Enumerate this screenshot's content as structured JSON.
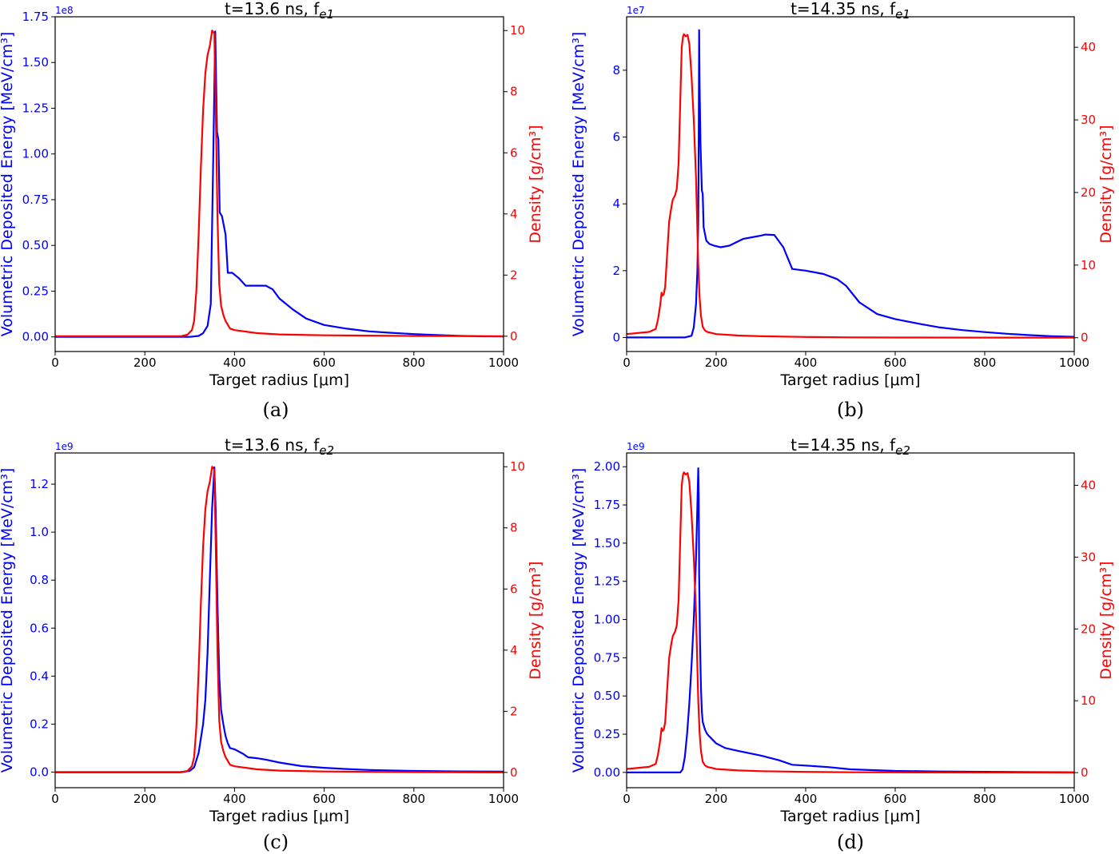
{
  "chart_data": [
    {
      "panel": "(a)",
      "type": "line",
      "title": "t=13.6 ns, f",
      "title_sub": "e1",
      "xlabel": "Target radius [μm]",
      "ylabel_left": "Volumetric Deposited Energy [MeV/cm³]",
      "ylabel_right": "Density [g/cm³]",
      "left_multiplier": "1e8",
      "xlim": [
        0,
        1000
      ],
      "ylim_left": [
        -0.08,
        1.75
      ],
      "ylim_right": [
        -0.5,
        10.45
      ],
      "x_ticks": [
        0,
        200,
        400,
        600,
        800,
        1000
      ],
      "x_tick_labels": [
        "0",
        "200",
        "400",
        "600",
        "800",
        "1000"
      ],
      "left_ticks": [
        0,
        0.25,
        0.5,
        0.75,
        1.0,
        1.25,
        1.5,
        1.75
      ],
      "left_tick_labels": [
        "0.00",
        "0.25",
        "0.50",
        "0.75",
        "1.00",
        "1.25",
        "1.50",
        "1.75"
      ],
      "right_ticks": [
        0,
        2,
        4,
        6,
        8,
        10
      ],
      "right_tick_labels": [
        "0",
        "2",
        "4",
        "6",
        "8",
        "10"
      ],
      "series": [
        {
          "name": "Volumetric Deposited Energy",
          "axis": "left",
          "color": "#0000ff",
          "x": [
            0,
            250,
            300,
            320,
            330,
            340,
            347,
            352,
            357,
            361,
            364,
            367,
            372,
            380,
            385,
            390,
            395,
            400,
            410,
            425,
            440,
            470,
            485,
            500,
            530,
            560,
            600,
            650,
            700,
            750,
            800,
            850,
            900,
            950,
            1000
          ],
          "y": [
            0,
            0,
            0,
            0.005,
            0.02,
            0.06,
            0.18,
            0.9,
            1.67,
            1.12,
            1.08,
            0.68,
            0.66,
            0.56,
            0.35,
            0.35,
            0.35,
            0.34,
            0.32,
            0.28,
            0.28,
            0.28,
            0.26,
            0.21,
            0.15,
            0.1,
            0.065,
            0.045,
            0.03,
            0.022,
            0.015,
            0.01,
            0.006,
            0.003,
            0.002
          ]
        },
        {
          "name": "Density",
          "axis": "right",
          "color": "#ff0000",
          "x": [
            0,
            280,
            295,
            305,
            310,
            315,
            320,
            325,
            330,
            335,
            340,
            345,
            350,
            355,
            358,
            362,
            366,
            370,
            375,
            380,
            390,
            400,
            450,
            500,
            600,
            700,
            800,
            1000
          ],
          "y": [
            0,
            0,
            0.05,
            0.2,
            0.5,
            1.5,
            3.3,
            5.5,
            7.4,
            8.6,
            9.2,
            9.5,
            10.0,
            9.9,
            7.6,
            3.9,
            1.7,
            1.0,
            0.7,
            0.5,
            0.25,
            0.2,
            0.1,
            0.06,
            0.03,
            0.02,
            0.01,
            0
          ]
        }
      ]
    },
    {
      "panel": "(b)",
      "type": "line",
      "title": "t=14.35 ns, f",
      "title_sub": "e1",
      "xlabel": "Target radius [μm]",
      "ylabel_left": "Volumetric Deposited Energy [MeV/cm³]",
      "ylabel_right": "Density [g/cm³]",
      "left_multiplier": "1e7",
      "xlim": [
        0,
        1000
      ],
      "ylim_left": [
        -0.42,
        9.6
      ],
      "ylim_right": [
        -1.9,
        44.2
      ],
      "x_ticks": [
        0,
        200,
        400,
        600,
        800,
        1000
      ],
      "x_tick_labels": [
        "0",
        "200",
        "400",
        "600",
        "800",
        "1000"
      ],
      "left_ticks": [
        0,
        2,
        4,
        6,
        8
      ],
      "left_tick_labels": [
        "0",
        "2",
        "4",
        "6",
        "8"
      ],
      "right_ticks": [
        0,
        10,
        20,
        30,
        40
      ],
      "right_tick_labels": [
        "0",
        "10",
        "20",
        "30",
        "40"
      ],
      "series": [
        {
          "name": "Volumetric Deposited Energy",
          "axis": "left",
          "color": "#0000ff",
          "x": [
            0,
            130,
            145,
            150,
            155,
            158,
            160,
            161,
            162,
            163,
            165,
            168,
            170,
            172,
            175,
            178,
            185,
            195,
            210,
            230,
            260,
            280,
            300,
            310,
            330,
            350,
            370,
            400,
            440,
            470,
            490,
            520,
            560,
            600,
            650,
            700,
            750,
            800,
            850,
            900,
            950,
            1000
          ],
          "y": [
            0,
            0,
            0.05,
            0.3,
            1.0,
            2.0,
            3.5,
            6.0,
            9.2,
            7.5,
            5.8,
            4.4,
            4.3,
            3.3,
            3.1,
            2.9,
            2.8,
            2.75,
            2.7,
            2.75,
            2.95,
            3.0,
            3.05,
            3.08,
            3.07,
            2.7,
            2.05,
            2.0,
            1.9,
            1.75,
            1.55,
            1.05,
            0.7,
            0.55,
            0.42,
            0.3,
            0.22,
            0.16,
            0.11,
            0.07,
            0.04,
            0.02
          ]
        },
        {
          "name": "Density",
          "axis": "right",
          "color": "#ff0000",
          "x": [
            0,
            50,
            65,
            70,
            75,
            78,
            80,
            83,
            86,
            88,
            92,
            95,
            100,
            103,
            108,
            112,
            116,
            120,
            123,
            126,
            128,
            132,
            136,
            140,
            145,
            150,
            155,
            160,
            163,
            166,
            170,
            175,
            180,
            200,
            250,
            300,
            400,
            500,
            600,
            800,
            1000
          ],
          "y": [
            0.5,
            0.8,
            1.2,
            2.5,
            4.5,
            6.2,
            5.8,
            6.0,
            7.0,
            9.0,
            13.0,
            16.0,
            18.0,
            19.0,
            19.6,
            20.5,
            24.0,
            33.0,
            40.0,
            41.5,
            41.8,
            41.5,
            41.7,
            40.5,
            36.0,
            30.0,
            22.0,
            10.0,
            5.5,
            3.0,
            1.5,
            1.0,
            0.8,
            0.5,
            0.3,
            0.2,
            0.1,
            0.05,
            0.03,
            0.01,
            0
          ]
        }
      ]
    },
    {
      "panel": "(c)",
      "type": "line",
      "title": "t=13.6 ns, f",
      "title_sub": "e2",
      "xlabel": "Target radius [μm]",
      "ylabel_left": "Volumetric Deposited Energy [MeV/cm³]",
      "ylabel_right": "Density [g/cm³]",
      "left_multiplier": "1e9",
      "xlim": [
        0,
        1000
      ],
      "ylim_left": [
        -0.065,
        1.33
      ],
      "ylim_right": [
        -0.5,
        10.45
      ],
      "x_ticks": [
        0,
        200,
        400,
        600,
        800,
        1000
      ],
      "x_tick_labels": [
        "0",
        "200",
        "400",
        "600",
        "800",
        "1000"
      ],
      "left_ticks": [
        0,
        0.2,
        0.4,
        0.6,
        0.8,
        1.0,
        1.2
      ],
      "left_tick_labels": [
        "0.0",
        "0.2",
        "0.4",
        "0.6",
        "0.8",
        "1.0",
        "1.2"
      ],
      "right_ticks": [
        0,
        2,
        4,
        6,
        8,
        10
      ],
      "right_tick_labels": [
        "0",
        "2",
        "4",
        "6",
        "8",
        "10"
      ],
      "series": [
        {
          "name": "Volumetric Deposited Energy",
          "axis": "left",
          "color": "#0000ff",
          "x": [
            0,
            280,
            300,
            310,
            320,
            330,
            335,
            340,
            345,
            350,
            355,
            358,
            362,
            366,
            370,
            375,
            380,
            385,
            390,
            400,
            420,
            430,
            450,
            470,
            500,
            550,
            600,
            650,
            700,
            800,
            900,
            1000
          ],
          "y": [
            0,
            0,
            0.005,
            0.02,
            0.08,
            0.2,
            0.3,
            0.5,
            0.8,
            1.1,
            1.27,
            1.1,
            0.7,
            0.4,
            0.26,
            0.2,
            0.15,
            0.12,
            0.1,
            0.095,
            0.075,
            0.062,
            0.058,
            0.052,
            0.04,
            0.025,
            0.018,
            0.013,
            0.009,
            0.005,
            0.003,
            0.002
          ]
        },
        {
          "name": "Density",
          "axis": "right",
          "color": "#ff0000",
          "x": [
            0,
            280,
            295,
            305,
            310,
            315,
            320,
            325,
            330,
            335,
            340,
            345,
            350,
            355,
            358,
            362,
            366,
            370,
            375,
            380,
            390,
            400,
            450,
            500,
            600,
            700,
            800,
            1000
          ],
          "y": [
            0,
            0,
            0.05,
            0.2,
            0.5,
            1.5,
            3.3,
            5.5,
            7.4,
            8.6,
            9.2,
            9.5,
            10.0,
            9.9,
            7.6,
            3.9,
            1.7,
            1.0,
            0.7,
            0.5,
            0.25,
            0.2,
            0.1,
            0.06,
            0.03,
            0.02,
            0.01,
            0
          ]
        }
      ]
    },
    {
      "panel": "(d)",
      "type": "line",
      "title": "t=14.35 ns, f",
      "title_sub": "e2",
      "xlabel": "Target radius [μm]",
      "ylabel_left": "Volumetric Deposited Energy [MeV/cm³]",
      "ylabel_right": "Density [g/cm³]",
      "left_multiplier": "1e9",
      "xlim": [
        0,
        1000
      ],
      "ylim_left": [
        -0.1,
        2.09
      ],
      "ylim_right": [
        -2.1,
        44.5
      ],
      "x_ticks": [
        0,
        200,
        400,
        600,
        800,
        1000
      ],
      "x_tick_labels": [
        "0",
        "200",
        "400",
        "600",
        "800",
        "1000"
      ],
      "left_ticks": [
        0,
        0.25,
        0.5,
        0.75,
        1.0,
        1.25,
        1.5,
        1.75,
        2.0
      ],
      "left_tick_labels": [
        "0.00",
        "0.25",
        "0.50",
        "0.75",
        "1.00",
        "1.25",
        "1.50",
        "1.75",
        "2.00"
      ],
      "right_ticks": [
        0,
        10,
        20,
        30,
        40
      ],
      "right_tick_labels": [
        "0",
        "10",
        "20",
        "30",
        "40"
      ],
      "series": [
        {
          "name": "Volumetric Deposited Energy",
          "axis": "left",
          "color": "#0000ff",
          "x": [
            0,
            120,
            125,
            130,
            135,
            140,
            145,
            150,
            155,
            158,
            160,
            161,
            162,
            164,
            166,
            168,
            170,
            175,
            180,
            190,
            200,
            220,
            250,
            300,
            340,
            370,
            400,
            450,
            500,
            550,
            600,
            700,
            800,
            900,
            1000
          ],
          "y": [
            0,
            0,
            0.02,
            0.1,
            0.25,
            0.45,
            0.7,
            1.0,
            1.4,
            1.75,
            1.99,
            1.8,
            1.3,
            0.85,
            0.55,
            0.4,
            0.33,
            0.28,
            0.25,
            0.22,
            0.19,
            0.16,
            0.14,
            0.11,
            0.08,
            0.05,
            0.045,
            0.035,
            0.02,
            0.015,
            0.01,
            0.006,
            0.004,
            0.002,
            0.001
          ]
        },
        {
          "name": "Density",
          "axis": "right",
          "color": "#ff0000",
          "x": [
            0,
            50,
            65,
            70,
            75,
            78,
            80,
            83,
            86,
            88,
            92,
            95,
            100,
            103,
            108,
            112,
            116,
            120,
            123,
            126,
            128,
            132,
            136,
            140,
            145,
            150,
            155,
            160,
            163,
            166,
            170,
            175,
            180,
            200,
            250,
            300,
            400,
            500,
            600,
            800,
            1000
          ],
          "y": [
            0.5,
            0.8,
            1.2,
            2.5,
            4.5,
            6.2,
            5.8,
            6.0,
            7.0,
            9.0,
            13.0,
            16.0,
            18.0,
            19.0,
            19.6,
            20.5,
            24.0,
            33.0,
            40.0,
            41.5,
            41.8,
            41.5,
            41.7,
            40.5,
            36.0,
            30.0,
            22.0,
            10.0,
            5.5,
            3.0,
            1.5,
            1.0,
            0.8,
            0.5,
            0.3,
            0.2,
            0.1,
            0.05,
            0.03,
            0.01,
            0
          ]
        }
      ]
    }
  ]
}
